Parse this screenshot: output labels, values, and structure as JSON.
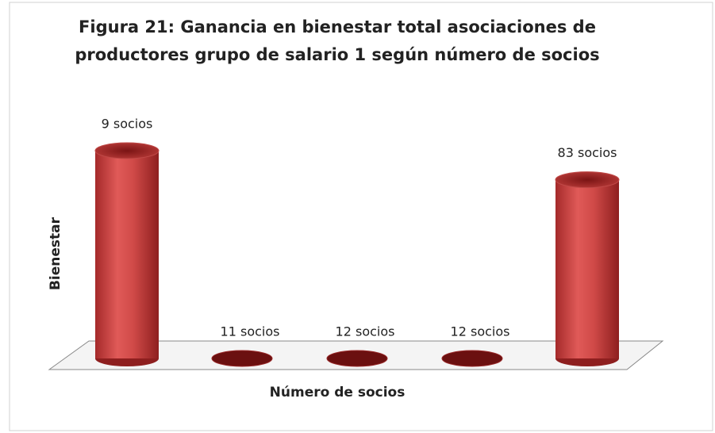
{
  "chart_data": {
    "type": "bar3d",
    "title": [
      "Figura 21: Ganancia en bienestar total asociaciones de",
      "productores grupo de salario 1 según número de socios"
    ],
    "y_label": "Bienestar",
    "x_label": "Número de socios",
    "categories": [
      "9 socios",
      "11 socios",
      "12 socios",
      "12 socios",
      "83 socios"
    ],
    "values": [
      1,
      0,
      0,
      0,
      0.86
    ],
    "color": "#c0403e",
    "ylim": [
      0,
      1
    ]
  }
}
